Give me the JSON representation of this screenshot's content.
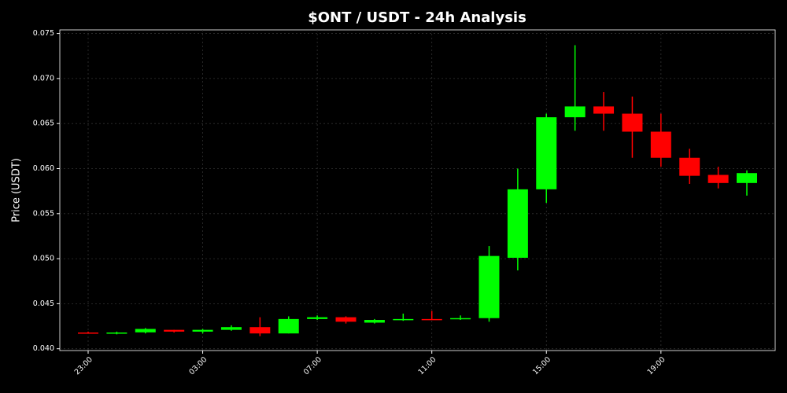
{
  "chart_data": {
    "type": "candlestick",
    "title": "$ONT / USDT - 24h Analysis",
    "y_label": "Price (USDT)",
    "categories": [
      "23:00",
      null,
      null,
      null,
      "03:00",
      null,
      null,
      null,
      "07:00",
      null,
      null,
      null,
      "11:00",
      null,
      null,
      null,
      "15:00",
      null,
      null,
      null,
      "19:00",
      null,
      null,
      null
    ],
    "open": [
      0.0418,
      0.0417,
      0.04182,
      0.0421,
      0.0419,
      0.0421,
      0.0424,
      0.0417,
      0.0433,
      0.0435,
      0.0429,
      0.0432,
      0.0433,
      0.0433,
      0.0434,
      0.0501,
      0.0577,
      0.0657,
      0.0669,
      0.0661,
      0.0641,
      0.0612,
      0.0593,
      0.0584
    ],
    "high": [
      0.0419,
      0.0419,
      0.0423,
      0.0421,
      0.0422,
      0.0426,
      0.0435,
      0.0436,
      0.0437,
      0.0436,
      0.0433,
      0.0439,
      0.0442,
      0.0437,
      0.0514,
      0.06,
      0.0661,
      0.0737,
      0.0685,
      0.068,
      0.0661,
      0.0622,
      0.0602,
      0.0598
    ],
    "low": [
      0.0417,
      0.0416,
      0.0417,
      0.0418,
      0.0417,
      0.042,
      0.0414,
      0.0417,
      0.0432,
      0.0428,
      0.0428,
      0.0431,
      0.0432,
      0.0432,
      0.043,
      0.0487,
      0.0562,
      0.0642,
      0.0642,
      0.0612,
      0.0602,
      0.0583,
      0.0578,
      0.057
    ],
    "close": [
      0.04175,
      0.0418,
      0.0422,
      0.0419,
      0.0421,
      0.0424,
      0.0417,
      0.0433,
      0.0435,
      0.043,
      0.0432,
      0.0433,
      0.0432,
      0.0434,
      0.0503,
      0.0577,
      0.0657,
      0.0669,
      0.0661,
      0.0641,
      0.0612,
      0.0592,
      0.0584,
      0.0595
    ],
    "up_color": "#00ff00",
    "down_color": "#ff0000",
    "ylim": [
      0.0398,
      0.0754
    ],
    "yticks": [
      {
        "value": 0.04,
        "label": "0.040"
      },
      0.045,
      {
        "value": 0.05,
        "label": "0.050"
      },
      0.055,
      {
        "value": 0.06,
        "label": "0.060"
      },
      0.065,
      {
        "value": 0.07,
        "label": "0.070"
      },
      0.075
    ],
    "grid": true
  }
}
